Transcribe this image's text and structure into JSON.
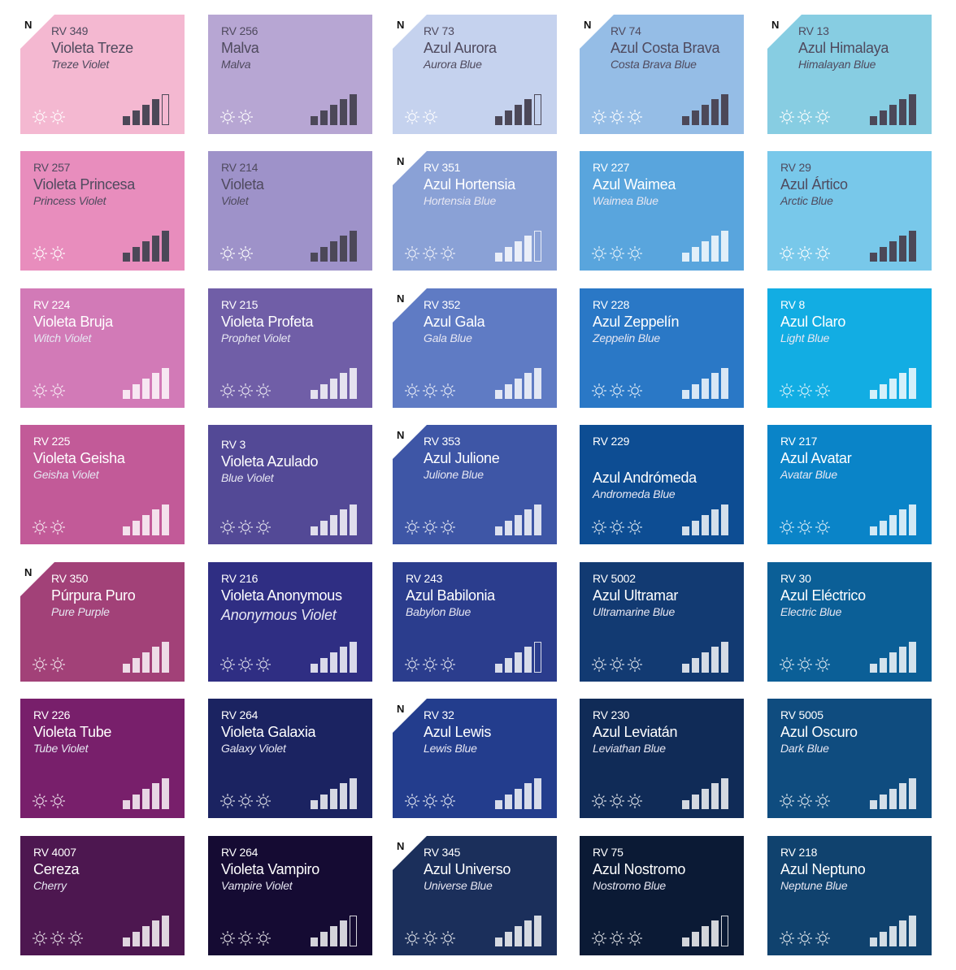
{
  "rows": [
    [
      {
        "code": "RV 349",
        "name": "Violeta Treze",
        "sub": "Treze Violet",
        "bg": "#f4b8d1",
        "n": true,
        "suns": 2,
        "bars": 5,
        "outline": true,
        "theme": "dark"
      },
      {
        "code": "RV 256",
        "name": "Malva",
        "sub": "Malva",
        "bg": "#b7a6d3",
        "n": false,
        "suns": 2,
        "bars": 5,
        "outline": false,
        "theme": "dark"
      },
      {
        "code": "RV 73",
        "name": "Azul Aurora",
        "sub": "Aurora Blue",
        "bg": "#c5d2ee",
        "n": true,
        "suns": 2,
        "bars": 5,
        "outline": true,
        "theme": "dark"
      },
      {
        "code": "RV 74",
        "name": "Azul Costa Brava",
        "sub": "Costa Brava Blue",
        "bg": "#95bde6",
        "n": true,
        "suns": 3,
        "bars": 5,
        "outline": false,
        "theme": "dark"
      },
      {
        "code": "RV 13",
        "name": "Azul Himalaya",
        "sub": "Himalayan Blue",
        "bg": "#87cde2",
        "n": true,
        "suns": 3,
        "bars": 5,
        "outline": false,
        "theme": "dark"
      }
    ],
    [
      {
        "code": "RV 257",
        "name": "Violeta Princesa",
        "sub": "Princess Violet",
        "bg": "#e88dbd",
        "n": false,
        "suns": 2,
        "bars": 5,
        "outline": false,
        "theme": "dark"
      },
      {
        "code": "RV 214",
        "name": "Violeta",
        "sub": "Violet",
        "bg": "#9e92c9",
        "n": false,
        "suns": 2,
        "bars": 5,
        "outline": false,
        "theme": "dark"
      },
      {
        "code": "RV 351",
        "name": "Azul Hortensia",
        "sub": "Hortensia Blue",
        "bg": "#8aa1d6",
        "n": true,
        "suns": 3,
        "bars": 5,
        "outline": true,
        "theme": "light"
      },
      {
        "code": "RV 227",
        "name": "Azul Waimea",
        "sub": "Waimea Blue",
        "bg": "#59a5dd",
        "n": false,
        "suns": 3,
        "bars": 5,
        "outline": false,
        "theme": "light"
      },
      {
        "code": "RV 29",
        "name": "Azul Ártico",
        "sub": "Arctic Blue",
        "bg": "#78c8ea",
        "n": false,
        "suns": 3,
        "bars": 5,
        "outline": false,
        "theme": "dark"
      }
    ],
    [
      {
        "code": "RV 224",
        "name": "Violeta Bruja",
        "sub": "Witch Violet",
        "bg": "#d27ab7",
        "n": false,
        "suns": 2,
        "bars": 5,
        "outline": false,
        "theme": "light"
      },
      {
        "code": "RV 215",
        "name": "Violeta Profeta",
        "sub": "Prophet Violet",
        "bg": "#705ea7",
        "n": false,
        "suns": 3,
        "bars": 5,
        "outline": false,
        "theme": "light"
      },
      {
        "code": "RV 352",
        "name": "Azul Gala",
        "sub": "Gala Blue",
        "bg": "#5f7bc4",
        "n": true,
        "suns": 3,
        "bars": 5,
        "outline": false,
        "theme": "light"
      },
      {
        "code": "RV 228",
        "name": "Azul Zeppelín",
        "sub": "Zeppelin Blue",
        "bg": "#2a78c6",
        "n": false,
        "suns": 3,
        "bars": 5,
        "outline": false,
        "theme": "light"
      },
      {
        "code": "RV 8",
        "name": "Azul Claro",
        "sub": "Light Blue",
        "bg": "#12ade3",
        "n": false,
        "suns": 3,
        "bars": 5,
        "outline": false,
        "theme": "light"
      }
    ],
    [
      {
        "code": "RV 225",
        "name": "Violeta Geisha",
        "sub": "Geisha Violet",
        "bg": "#c25a98",
        "n": false,
        "suns": 2,
        "bars": 5,
        "outline": false,
        "theme": "light"
      },
      {
        "code": "RV 3",
        "name": "Violeta Azulado",
        "sub": "Blue Violet",
        "bg": "#534996",
        "n": false,
        "suns": 3,
        "bars": 5,
        "outline": false,
        "theme": "light"
      },
      {
        "code": "RV 353",
        "name": "Azul Julione",
        "sub": "Julione Blue",
        "bg": "#3e56a6",
        "n": true,
        "suns": 3,
        "bars": 5,
        "outline": false,
        "theme": "light"
      },
      {
        "code": "RV 229",
        "name": "Azul Andrómeda",
        "sub": "Andromeda Blue",
        "bg": "#0d4d93",
        "n": false,
        "suns": 3,
        "bars": 5,
        "outline": false,
        "theme": "light"
      },
      {
        "code": "RV 217",
        "name": "Azul Avatar",
        "sub": "Avatar Blue",
        "bg": "#0a84c8",
        "n": false,
        "suns": 3,
        "bars": 5,
        "outline": false,
        "theme": "light"
      }
    ],
    [
      {
        "code": "RV 350",
        "name": "Púrpura Puro",
        "sub": "Pure Purple",
        "bg": "#a24178",
        "n": true,
        "suns": 2,
        "bars": 5,
        "outline": false,
        "theme": "light"
      },
      {
        "code": "RV 216",
        "name": "Violeta Anonymous",
        "sub": "Anonymous Violet",
        "bg": "#2f2e83",
        "n": false,
        "suns": 3,
        "bars": 5,
        "outline": false,
        "theme": "light"
      },
      {
        "code": "RV 243",
        "name": "Azul Babilonia",
        "sub": "Babylon Blue",
        "bg": "#2b3d8d",
        "n": false,
        "suns": 3,
        "bars": 5,
        "outline": true,
        "theme": "light"
      },
      {
        "code": "RV 5002",
        "name": "Azul Ultramar",
        "sub": "Ultramarine Blue",
        "bg": "#123a72",
        "n": false,
        "suns": 3,
        "bars": 5,
        "outline": false,
        "theme": "light"
      },
      {
        "code": "RV 30",
        "name": "Azul Eléctrico",
        "sub": "Electric Blue",
        "bg": "#0b5f97",
        "n": false,
        "suns": 3,
        "bars": 5,
        "outline": false,
        "theme": "light"
      }
    ],
    [
      {
        "code": "RV 226",
        "name": "Violeta Tube",
        "sub": "Tube Violet",
        "bg": "#781f6b",
        "n": false,
        "suns": 2,
        "bars": 5,
        "outline": false,
        "theme": "light"
      },
      {
        "code": "RV 264",
        "name": "Violeta Galaxia",
        "sub": "Galaxy Violet",
        "bg": "#1b2361",
        "n": false,
        "suns": 3,
        "bars": 5,
        "outline": false,
        "theme": "light"
      },
      {
        "code": "RV 32",
        "name": "Azul Lewis",
        "sub": "Lewis Blue",
        "bg": "#233d8d",
        "n": true,
        "suns": 3,
        "bars": 5,
        "outline": false,
        "theme": "light"
      },
      {
        "code": "RV 230",
        "name": "Azul Leviatán",
        "sub": "Leviathan Blue",
        "bg": "#102b57",
        "n": false,
        "suns": 3,
        "bars": 5,
        "outline": false,
        "theme": "light"
      },
      {
        "code": "RV 5005",
        "name": "Azul Oscuro",
        "sub": "Dark Blue",
        "bg": "#0f4c7f",
        "n": false,
        "suns": 3,
        "bars": 5,
        "outline": false,
        "theme": "light"
      }
    ],
    [
      {
        "code": "RV 4007",
        "name": "Cereza",
        "sub": "Cherry",
        "bg": "#4d1750",
        "n": false,
        "suns": 3,
        "bars": 5,
        "outline": false,
        "theme": "light"
      },
      {
        "code": "RV 264",
        "name": "Violeta Vampiro",
        "sub": "Vampire Violet",
        "bg": "#150b33",
        "n": false,
        "suns": 3,
        "bars": 5,
        "outline": true,
        "theme": "light"
      },
      {
        "code": "RV 345",
        "name": "Azul Universo",
        "sub": "Universe Blue",
        "bg": "#1b2f5b",
        "n": true,
        "suns": 3,
        "bars": 5,
        "outline": false,
        "theme": "light"
      },
      {
        "code": "RV 75",
        "name": "Azul Nostromo",
        "sub": "Nostromo Blue",
        "bg": "#0b1a35",
        "n": false,
        "suns": 3,
        "bars": 5,
        "outline": true,
        "theme": "light"
      },
      {
        "code": "RV 218",
        "name": "Azul Neptuno",
        "sub": "Neptune Blue",
        "bg": "#10426e",
        "n": false,
        "suns": 3,
        "bars": 5,
        "outline": false,
        "theme": "light"
      }
    ]
  ],
  "n_label": "N"
}
